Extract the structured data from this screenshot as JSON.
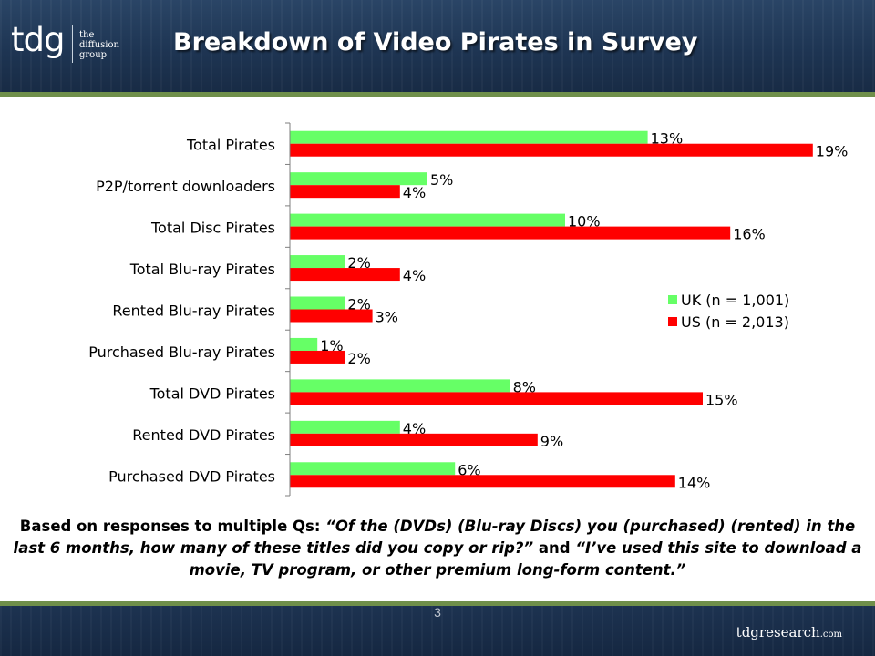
{
  "header": {
    "logo_mark": "tdg",
    "logo_lines": [
      "the",
      "diffusion",
      "group"
    ],
    "title": "Breakdown of Video Pirates in Survey"
  },
  "chart_data": {
    "type": "bar",
    "orientation": "horizontal",
    "categories": [
      "Total Pirates",
      "P2P/torrent downloaders",
      "Total Disc Pirates",
      "Total Blu-ray Pirates",
      "Rented Blu-ray Pirates",
      "Purchased Blu-ray Pirates",
      "Total DVD Pirates",
      "Rented DVD Pirates",
      "Purchased DVD Pirates"
    ],
    "series": [
      {
        "name": "UK (n = 1,001)",
        "color": "#66ff66",
        "values": [
          13,
          5,
          10,
          2,
          2,
          1,
          8,
          4,
          6
        ],
        "labels": [
          "13%",
          "5%",
          "10%",
          "2%",
          "2%",
          "1%",
          "8%",
          "4%",
          "6%"
        ]
      },
      {
        "name": "US (n = 2,013)",
        "color": "#ff0000",
        "values": [
          19,
          4,
          16,
          4,
          3,
          2,
          15,
          9,
          14
        ],
        "labels": [
          "19%",
          "4%",
          "16%",
          "4%",
          "3%",
          "2%",
          "15%",
          "9%",
          "14%"
        ]
      }
    ],
    "xlim": [
      0,
      20
    ],
    "grid": false,
    "legend_position": "right-middle"
  },
  "caption": {
    "part1": "Based on responses to multiple Qs:  ",
    "quote1": "“Of the (DVDs) (Blu-ray Discs) you (purchased) (rented) in the last 6 months, how many of these titles did you copy or rip?”",
    "part2": " and ",
    "quote2": "“I’ve used this site to download a movie, TV program, or other premium long-form content.”"
  },
  "footer": {
    "page_number": "3",
    "brand_main": "tdgresearch",
    "brand_suffix": ".com"
  }
}
